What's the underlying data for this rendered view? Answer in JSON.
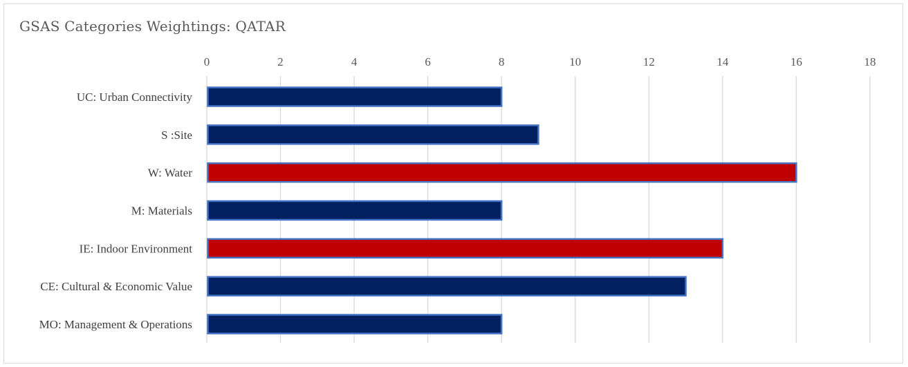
{
  "chart_data": {
    "type": "bar",
    "orientation": "horizontal",
    "title": "GSAS Categories Weightings: QATAR",
    "categories": [
      "UC: Urban Connectivity",
      "S :Site",
      "W: Water",
      "M: Materials",
      "IE: Indoor Environment",
      "CE: Cultural & Economic Value",
      "MO: Management & Operations"
    ],
    "series": [
      {
        "values": [
          8,
          9,
          16,
          8,
          14,
          13,
          8
        ],
        "colors": [
          "#002060",
          "#002060",
          "#c00000",
          "#002060",
          "#c00000",
          "#002060",
          "#002060"
        ]
      }
    ],
    "bar_border_color": "#4472c4",
    "xlim": [
      0,
      18
    ],
    "xticks": [
      0,
      2,
      4,
      6,
      8,
      10,
      12,
      14,
      16,
      18
    ],
    "x_axis_position": "top",
    "grid": true,
    "gridline_color": "#d9d9d9",
    "xlabel": "",
    "ylabel": ""
  }
}
